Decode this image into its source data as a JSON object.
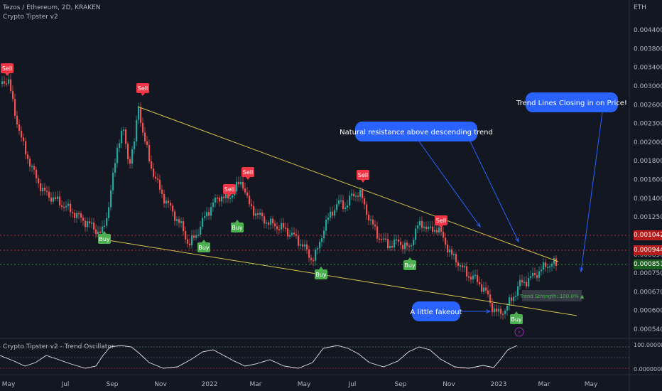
{
  "header": {
    "symbol_line": "Tezos / Ethereum, 2D, KRAKEN",
    "indicator_line": "Crypto Tipster v2",
    "currency": "ETH"
  },
  "oscillator": {
    "title": "Crypto Tipster v2 - Trend Oscillator",
    "axis_labels": [
      "100.0000000",
      "0.0000000"
    ]
  },
  "price_labels": [
    {
      "text": "0.0010423",
      "color": "#b71c1c"
    },
    {
      "text": "0.0009449",
      "color": "#b71c1c"
    },
    {
      "text": "0.0008513",
      "color": "#1b5e20"
    }
  ],
  "chart_data": {
    "type": "candlestick",
    "y_ticks": [
      "0.0044000",
      "0.0038000",
      "0.0034000",
      "0.0030000",
      "0.0026000",
      "0.0023000",
      "0.0020000",
      "0.0018000",
      "0.0016000",
      "0.0014000",
      "0.0012500",
      "0.0011000",
      "0.0008500",
      "0.0007500",
      "0.0006700",
      "0.0006000",
      "0.0005400"
    ],
    "x_ticks": [
      "May",
      "Jul",
      "Sep",
      "Nov",
      "2022",
      "Mar",
      "May",
      "Jul",
      "Sep",
      "Nov",
      "2023",
      "Mar",
      "May"
    ],
    "signals": [
      {
        "label": "Sell",
        "type": "sell"
      },
      {
        "label": "Sell",
        "type": "sell"
      },
      {
        "label": "Sell",
        "type": "sell"
      },
      {
        "label": "Sell",
        "type": "sell"
      },
      {
        "label": "Sell",
        "type": "sell"
      },
      {
        "label": "Sell",
        "type": "sell"
      },
      {
        "label": "Buy",
        "type": "buy"
      },
      {
        "label": "Buy",
        "type": "buy"
      },
      {
        "label": "Buy",
        "type": "buy"
      },
      {
        "label": "Buy",
        "type": "buy"
      },
      {
        "label": "Buy",
        "type": "buy"
      },
      {
        "label": "Buy",
        "type": "buy"
      }
    ],
    "annotations": [
      "Natural resistance above descending trend",
      "Trend Lines Closing in on Price!",
      "A little fakeout"
    ],
    "trend_strength": "Trend Strength: 100.0% ▲",
    "colors": {
      "up": "#26a69a",
      "down": "#ef5350",
      "trendline": "#d4c34a",
      "callout": "#2962ff",
      "buy": "#4caf50",
      "sell": "#f23645"
    }
  }
}
